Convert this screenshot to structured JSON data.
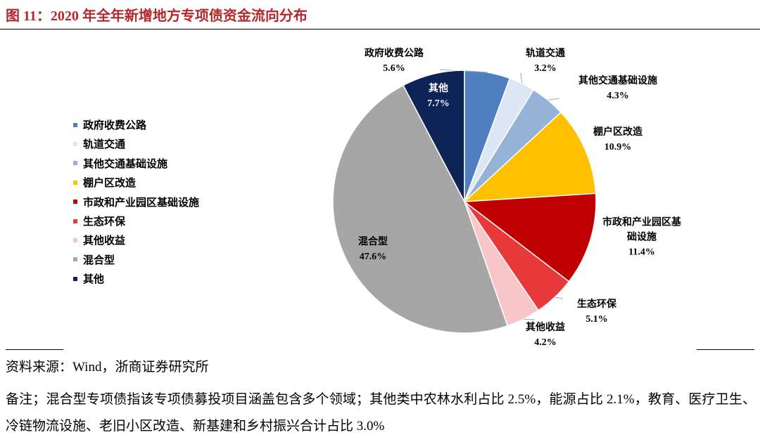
{
  "chart_data": {
    "type": "pie",
    "title": "图 11：2020 年全年新增地方专项债资金流向分布",
    "categories": [
      "政府收费公路",
      "轨道交通",
      "其他交通基础设施",
      "棚户区改造",
      "市政和产业园区基础设施",
      "生态环保",
      "其他收益",
      "混合型",
      "其他"
    ],
    "values": [
      5.6,
      3.2,
      4.3,
      10.9,
      11.4,
      5.1,
      4.2,
      47.6,
      7.7
    ],
    "value_labels": [
      "5.6%",
      "3.2%",
      "4.3%",
      "10.9%",
      "11.4%",
      "5.1%",
      "4.2%",
      "47.6%",
      "7.7%"
    ],
    "colors": [
      "#4f7fc1",
      "#dde7f3",
      "#95b3d7",
      "#ffc000",
      "#c00000",
      "#e8393a",
      "#f8c6c8",
      "#a6a6a6",
      "#0e2356"
    ],
    "legend": "left"
  },
  "source": "资料来源：Wind，浙商证券研究所",
  "note": "备注；混合型专项债指该专项债募投项目涵盖包含多个领域；其他类中农林水利占比 2.5%，能源占比 2.1%，教育、医疗卫生、冷链物流设施、老旧小区改造、新基建和乡村振兴合计占比 3.0%"
}
